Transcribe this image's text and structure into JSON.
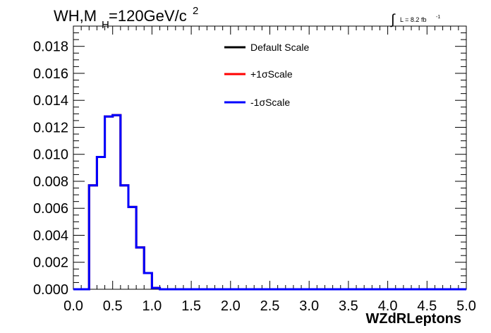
{
  "header": {
    "title_main": "WH,M",
    "title_sub": "H",
    "title_rest": "=120GeV/c",
    "title_sup": "2",
    "lumi_integral": "∫",
    "lumi_text": "L = 8.2 fb",
    "lumi_sup": "-1"
  },
  "chart_data": {
    "type": "line",
    "title": "WH,M_H=120GeV/c^2",
    "xlabel": "WZdRLeptons",
    "ylabel": "",
    "xlim": [
      0.0,
      5.0
    ],
    "ylim": [
      0.0,
      0.0195
    ],
    "x_ticks": [
      "0.0",
      "0.5",
      "1.0",
      "1.5",
      "2.0",
      "2.5",
      "3.0",
      "3.5",
      "4.0",
      "4.5",
      "5.0"
    ],
    "y_ticks": [
      "0.000",
      "0.002",
      "0.004",
      "0.006",
      "0.008",
      "0.010",
      "0.012",
      "0.014",
      "0.016",
      "0.018"
    ],
    "x_tick_values": [
      0.0,
      0.5,
      1.0,
      1.5,
      2.0,
      2.5,
      3.0,
      3.5,
      4.0,
      4.5,
      5.0
    ],
    "y_tick_values": [
      0.0,
      0.002,
      0.004,
      0.006,
      0.008,
      0.01,
      0.012,
      0.014,
      0.016,
      0.018
    ],
    "bin_edges": [
      0.0,
      0.1,
      0.2,
      0.3,
      0.4,
      0.5,
      0.6,
      0.7,
      0.8,
      0.9,
      1.0,
      1.1,
      1.2,
      1.3,
      1.4,
      1.5,
      1.6,
      1.7,
      1.8,
      1.9,
      2.0,
      2.1,
      2.2,
      2.3,
      2.4,
      2.5,
      2.6,
      2.7,
      2.8,
      2.9,
      3.0,
      3.1,
      3.2,
      3.3,
      3.4,
      3.5,
      3.6,
      3.7,
      3.8,
      3.9,
      4.0,
      4.1,
      4.2,
      4.3,
      4.4,
      4.5,
      4.6,
      4.7,
      4.8,
      4.9,
      5.0
    ],
    "series": [
      {
        "name": "Default Scale",
        "color": "#000000",
        "values": [
          0,
          0,
          0.0077,
          0.0098,
          0.0128,
          0.0129,
          0.0077,
          0.0061,
          0.0031,
          0.0012,
          0.0001,
          0,
          0,
          0,
          0,
          0,
          0,
          0,
          0,
          0,
          0,
          0,
          0,
          0,
          0,
          0,
          0,
          0,
          0,
          0,
          0,
          0,
          0,
          0,
          0,
          0,
          0,
          0,
          0,
          0,
          0,
          0,
          0,
          0,
          0,
          0,
          0,
          0,
          0,
          0
        ]
      },
      {
        "name": "+1σScale",
        "color": "#ff0000",
        "values": [
          0,
          0,
          0.0077,
          0.0098,
          0.0128,
          0.0129,
          0.0077,
          0.0061,
          0.0031,
          0.0012,
          0.0001,
          0,
          0,
          0,
          0,
          0,
          0,
          0,
          0,
          0,
          0,
          0,
          0,
          0,
          0,
          0,
          0,
          0,
          0,
          0,
          0,
          0,
          0,
          0,
          0,
          0,
          0,
          0,
          0,
          0,
          0,
          0,
          0,
          0,
          0,
          0,
          0,
          0,
          0,
          0
        ]
      },
      {
        "name": "-1σScale",
        "color": "#0000ff",
        "values": [
          0,
          0,
          0.0077,
          0.0098,
          0.0128,
          0.0129,
          0.0077,
          0.0061,
          0.0031,
          0.0012,
          0.0001,
          0,
          0,
          0,
          0,
          0,
          0,
          0,
          0,
          0,
          0,
          0,
          0,
          0,
          0,
          0,
          0,
          0,
          0,
          0,
          0,
          0,
          0,
          0,
          0,
          0,
          0,
          0,
          0,
          0,
          0,
          0,
          0,
          0,
          0,
          0,
          0,
          0,
          0,
          0
        ]
      }
    ],
    "legend": [
      "Default Scale",
      "+1σScale",
      "-1σScale"
    ],
    "legend_position": "top-right",
    "grid": false
  }
}
